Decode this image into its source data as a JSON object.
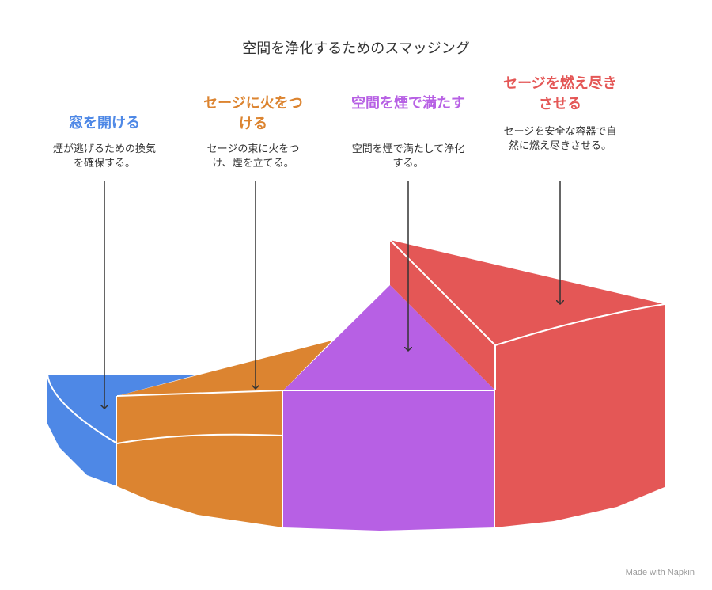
{
  "title": "空間を浄化するためのスマッジング",
  "steps": [
    {
      "title": "窓を開ける",
      "description": "煙が逃げるための換気を確保する。",
      "color": "#4e88e6"
    },
    {
      "title": "セージに火をつける",
      "description": "セージの束に火をつけ、煙を立てる。",
      "color": "#dc8430"
    },
    {
      "title": "空間を煙で満たす",
      "description": "空間を煙で満たして浄化する。",
      "color": "#b760e4"
    },
    {
      "title": "セージを燃え尽きさせる",
      "description": "セージを安全な容器で自然に燃え尽きさせる。",
      "color": "#e45756"
    }
  ],
  "credit": "Made with Napkin"
}
